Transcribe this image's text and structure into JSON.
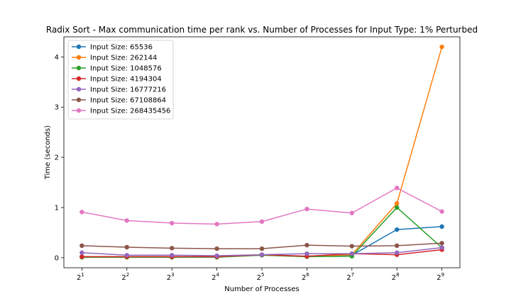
{
  "chart_data": {
    "type": "line",
    "title": "Radix Sort - Max communication time per rank vs. Number of Processes for Input Type: 1% Perturbed",
    "xlabel": "Number of Processes",
    "ylabel": "Time (seconds)",
    "x": [
      2,
      4,
      8,
      16,
      32,
      64,
      128,
      256,
      512
    ],
    "x_tick_base": "2",
    "x_tick_exponents": [
      "1",
      "2",
      "3",
      "4",
      "5",
      "6",
      "7",
      "8",
      "9"
    ],
    "yticks": [
      0,
      1,
      2,
      3,
      4
    ],
    "ylim": [
      -0.2,
      4.4
    ],
    "grid": false,
    "legend_position": "top-left",
    "series": [
      {
        "name": "Input Size: 65536",
        "color": "#1f77b4",
        "values": [
          0.02,
          0.02,
          0.02,
          0.02,
          0.06,
          0.03,
          0.05,
          0.56,
          0.62
        ]
      },
      {
        "name": "Input Size: 262144",
        "color": "#ff7f0e",
        "values": [
          0.01,
          0.01,
          0.01,
          0.02,
          0.05,
          0.02,
          0.06,
          1.08,
          4.2
        ]
      },
      {
        "name": "Input Size: 1048576",
        "color": "#2ca02c",
        "values": [
          0.01,
          0.01,
          0.01,
          0.01,
          0.05,
          0.02,
          0.03,
          1.0,
          0.2
        ]
      },
      {
        "name": "Input Size: 4194304",
        "color": "#d62728",
        "values": [
          0.02,
          0.02,
          0.02,
          0.02,
          0.06,
          0.03,
          0.08,
          0.06,
          0.16
        ]
      },
      {
        "name": "Input Size: 16777216",
        "color": "#9467bd",
        "values": [
          0.1,
          0.05,
          0.05,
          0.04,
          0.06,
          0.08,
          0.08,
          0.1,
          0.2
        ]
      },
      {
        "name": "Input Size: 67108864",
        "color": "#8c564b",
        "values": [
          0.24,
          0.21,
          0.19,
          0.18,
          0.18,
          0.25,
          0.23,
          0.24,
          0.29
        ]
      },
      {
        "name": "Input Size: 268435456",
        "color": "#e377c2",
        "values": [
          0.91,
          0.74,
          0.69,
          0.67,
          0.72,
          0.97,
          0.89,
          1.39,
          0.92
        ]
      }
    ]
  }
}
